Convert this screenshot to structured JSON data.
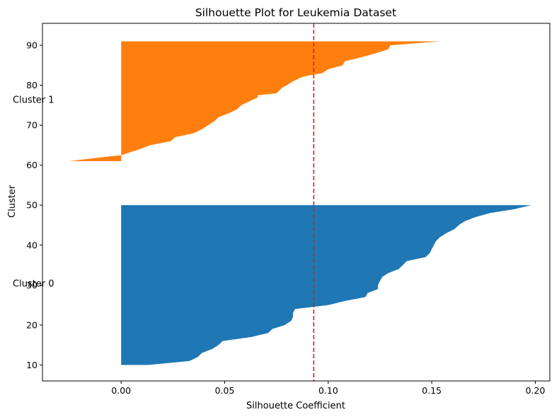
{
  "chart_data": {
    "type": "area",
    "title": "Silhouette Plot for Leukemia Dataset",
    "xlabel": "Silhouette Coefficient",
    "ylabel": "Cluster",
    "xlim": [
      -0.038,
      0.207
    ],
    "ylim": [
      6,
      95.5
    ],
    "x_ticks": [
      0.0,
      0.05,
      0.1,
      0.15,
      0.2
    ],
    "x_tick_labels": [
      "0.00",
      "0.05",
      "0.10",
      "0.15",
      "0.20"
    ],
    "y_ticks": [
      10,
      20,
      30,
      40,
      50,
      60,
      70,
      80,
      90
    ],
    "y_tick_labels": [
      "10",
      "20",
      "30",
      "40",
      "50",
      "60",
      "70",
      "80",
      "90"
    ],
    "grid": false,
    "reference_line": {
      "x": 0.093,
      "style": "dashed",
      "color": "#e31a1c"
    },
    "series": [
      {
        "name": "Cluster 0",
        "color": "#1f77b4",
        "y_range": [
          10,
          50
        ],
        "points": [
          [
            0.013,
            10
          ],
          [
            0.033,
            11
          ],
          [
            0.037,
            12
          ],
          [
            0.039,
            13
          ],
          [
            0.044,
            14
          ],
          [
            0.047,
            15
          ],
          [
            0.049,
            16
          ],
          [
            0.063,
            17
          ],
          [
            0.071,
            18
          ],
          [
            0.073,
            19
          ],
          [
            0.079,
            20
          ],
          [
            0.082,
            21
          ],
          [
            0.083,
            22
          ],
          [
            0.083,
            23
          ],
          [
            0.084,
            24
          ],
          [
            0.1,
            25
          ],
          [
            0.108,
            26
          ],
          [
            0.118,
            27
          ],
          [
            0.119,
            28
          ],
          [
            0.124,
            29
          ],
          [
            0.124,
            30
          ],
          [
            0.125,
            31
          ],
          [
            0.126,
            32
          ],
          [
            0.129,
            33
          ],
          [
            0.134,
            34
          ],
          [
            0.136,
            35
          ],
          [
            0.138,
            36
          ],
          [
            0.147,
            37
          ],
          [
            0.149,
            38
          ],
          [
            0.15,
            39
          ],
          [
            0.151,
            40
          ],
          [
            0.152,
            41
          ],
          [
            0.154,
            42
          ],
          [
            0.157,
            43
          ],
          [
            0.161,
            44
          ],
          [
            0.163,
            45
          ],
          [
            0.166,
            46
          ],
          [
            0.171,
            47
          ],
          [
            0.178,
            48
          ],
          [
            0.19,
            49
          ],
          [
            0.198,
            50
          ]
        ],
        "label_position": [
          30.5
        ]
      },
      {
        "name": "Cluster 1",
        "color": "#ff7f0e",
        "y_range": [
          61,
          91
        ],
        "points": [
          [
            -0.025,
            61
          ],
          [
            -0.009,
            62
          ],
          [
            0.0,
            62.5
          ],
          [
            0.003,
            63
          ],
          [
            0.009,
            64
          ],
          [
            0.014,
            65
          ],
          [
            0.024,
            66
          ],
          [
            0.025,
            66.5
          ],
          [
            0.026,
            67
          ],
          [
            0.035,
            68
          ],
          [
            0.039,
            69
          ],
          [
            0.042,
            70
          ],
          [
            0.045,
            71
          ],
          [
            0.047,
            72
          ],
          [
            0.052,
            73
          ],
          [
            0.056,
            74
          ],
          [
            0.058,
            75
          ],
          [
            0.062,
            76
          ],
          [
            0.066,
            77
          ],
          [
            0.066,
            77.5
          ],
          [
            0.075,
            78
          ],
          [
            0.077,
            79
          ],
          [
            0.078,
            79.5
          ],
          [
            0.08,
            80
          ],
          [
            0.083,
            81
          ],
          [
            0.087,
            82
          ],
          [
            0.091,
            82.5
          ],
          [
            0.097,
            83
          ],
          [
            0.1,
            84
          ],
          [
            0.107,
            85
          ],
          [
            0.108,
            86
          ],
          [
            0.116,
            87
          ],
          [
            0.123,
            88
          ],
          [
            0.129,
            89
          ],
          [
            0.13,
            90
          ],
          [
            0.154,
            91
          ]
        ],
        "label_position": [
          76.5
        ]
      }
    ]
  }
}
